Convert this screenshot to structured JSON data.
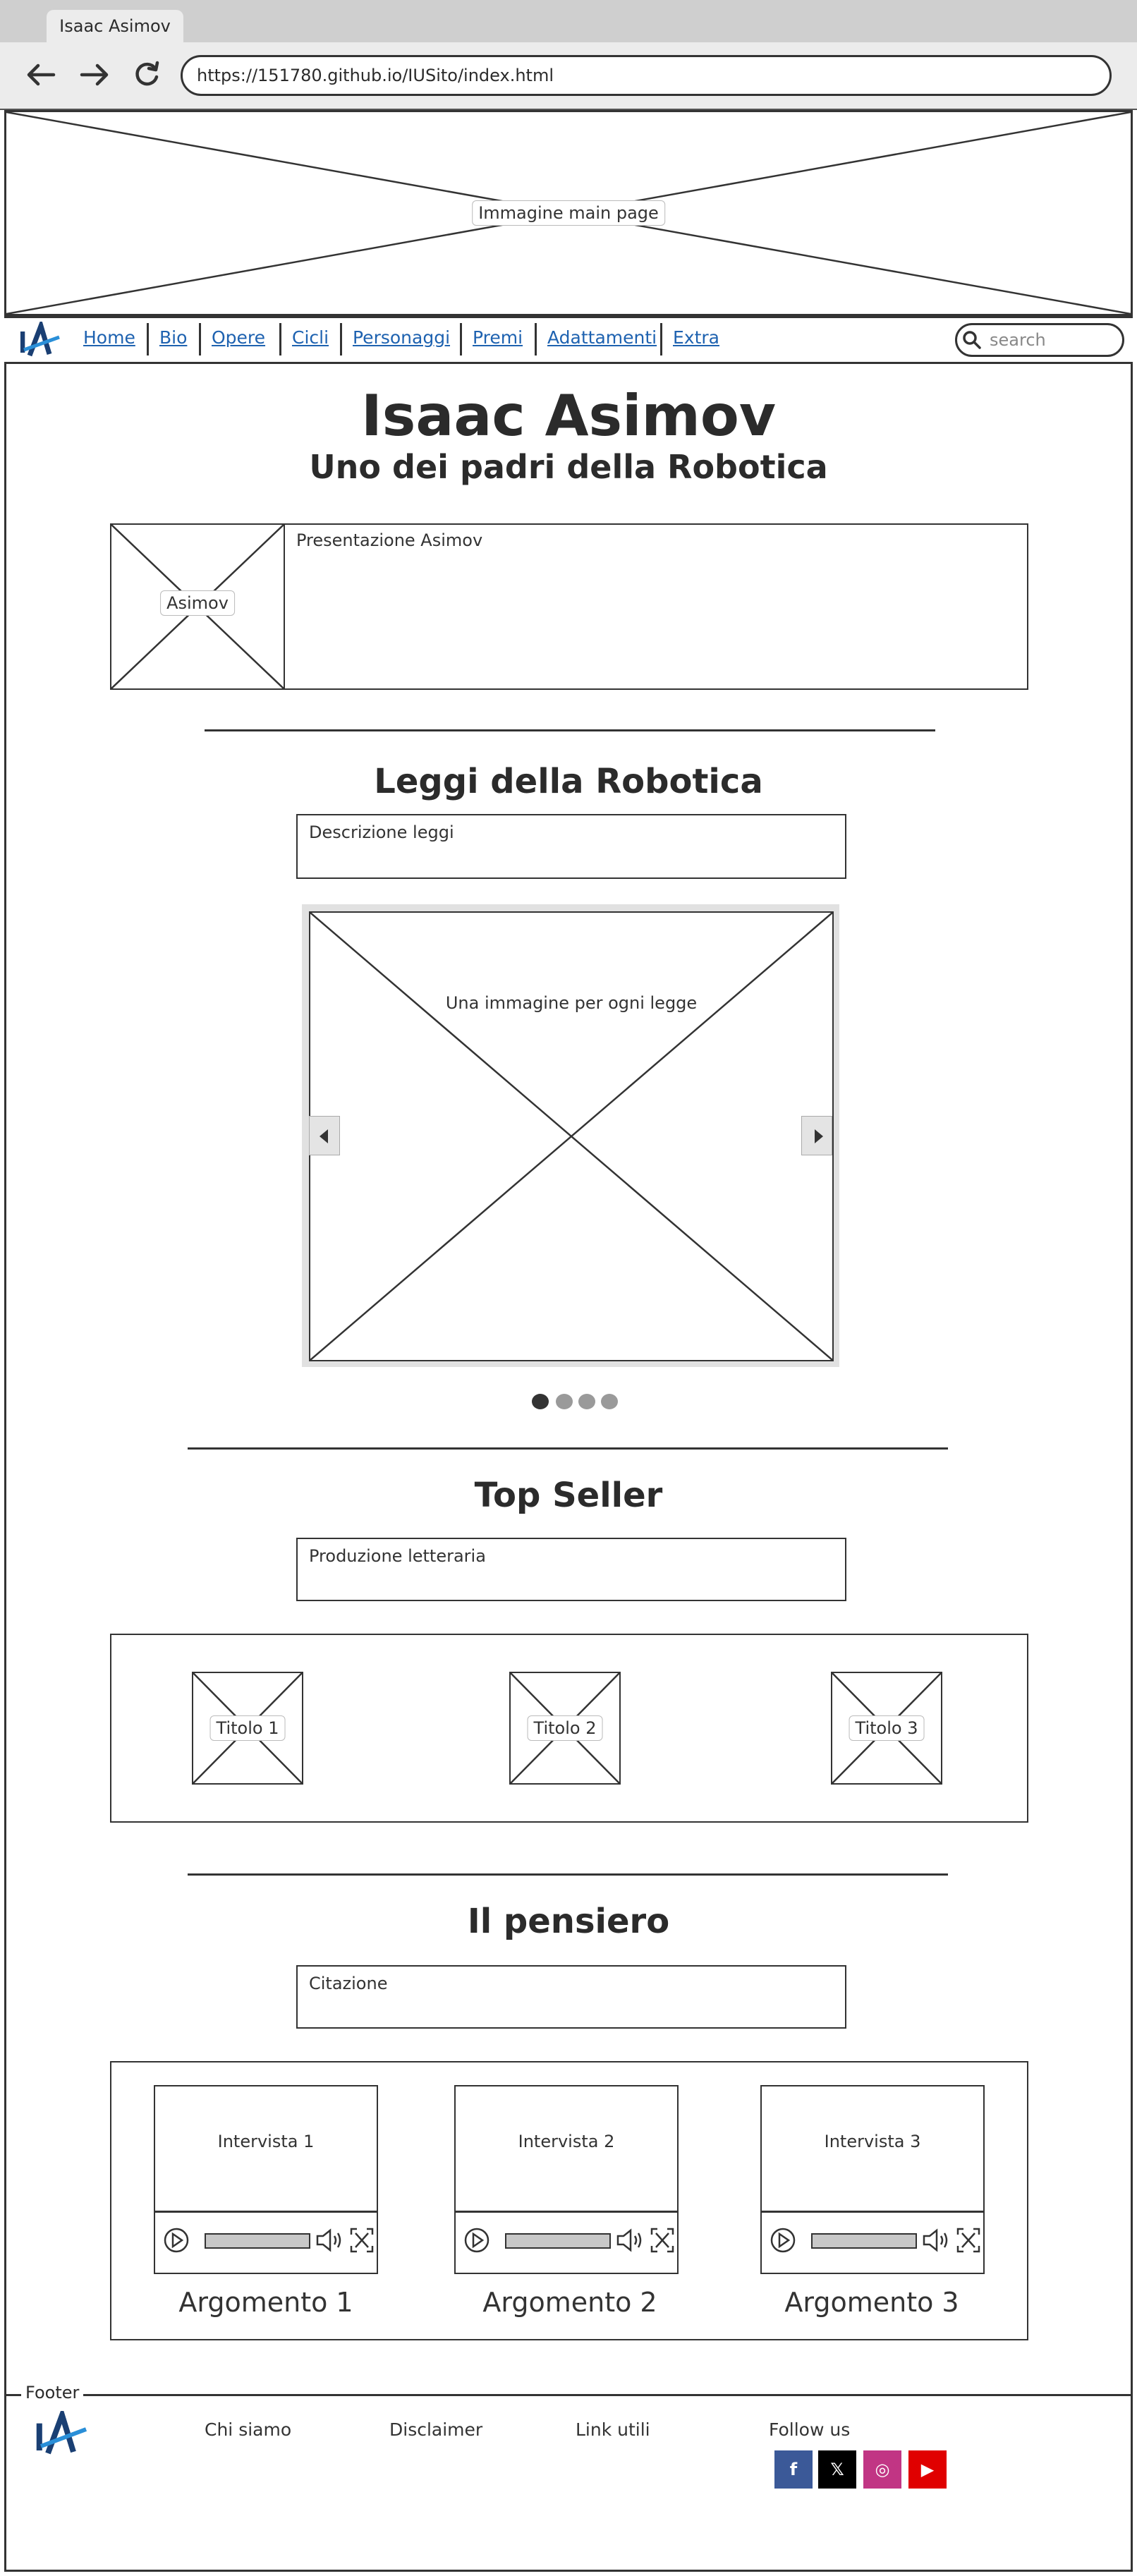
{
  "browser": {
    "tab_title": "Isaac Asimov",
    "url": "https://151780.github.io/IUSito/index.html"
  },
  "banner": {
    "label": "Immagine main page"
  },
  "nav": {
    "logo": "IA",
    "items": [
      {
        "label": "Home"
      },
      {
        "label": "Bio"
      },
      {
        "label": "Opere"
      },
      {
        "label": "Cicli"
      },
      {
        "label": "Personaggi"
      },
      {
        "label": "Premi"
      },
      {
        "label": "Adattamenti"
      },
      {
        "label": "Extra"
      }
    ],
    "search_placeholder": "search"
  },
  "hero": {
    "title": "Isaac Asimov",
    "subtitle": "Uno dei padri della Robotica",
    "photo_label": "Asimov",
    "presentation": "Presentazione Asimov"
  },
  "laws": {
    "title": "Leggi della Robotica",
    "description": "Descrizione leggi",
    "carousel_label": "Una immagine per ogni legge",
    "dots": 4,
    "active_dot": 0
  },
  "topseller": {
    "title": "Top Seller",
    "description": "Produzione letteraria",
    "books": [
      {
        "label": "Titolo 1"
      },
      {
        "label": "Titolo 2"
      },
      {
        "label": "Titolo 3"
      }
    ]
  },
  "pensiero": {
    "title": "Il pensiero",
    "quote": "Citazione",
    "videos": [
      {
        "label": "Intervista 1",
        "caption": "Argomento 1"
      },
      {
        "label": "Intervista 2",
        "caption": "Argomento 2"
      },
      {
        "label": "Intervista 3",
        "caption": "Argomento 3"
      }
    ]
  },
  "footer": {
    "legend": "Footer",
    "logo": "IA",
    "links": [
      {
        "label": "Chi siamo"
      },
      {
        "label": "Disclaimer"
      },
      {
        "label": "Link utili"
      }
    ],
    "follow": "Follow us",
    "social": [
      {
        "icon": "facebook-icon",
        "glyph": "f",
        "color": "#3b5998"
      },
      {
        "icon": "x-icon",
        "glyph": "𝕏",
        "color": "#000000"
      },
      {
        "icon": "instagram-icon",
        "glyph": "◎",
        "color": "#c13584"
      },
      {
        "icon": "youtube-icon",
        "glyph": "▶",
        "color": "#e00000"
      }
    ]
  }
}
